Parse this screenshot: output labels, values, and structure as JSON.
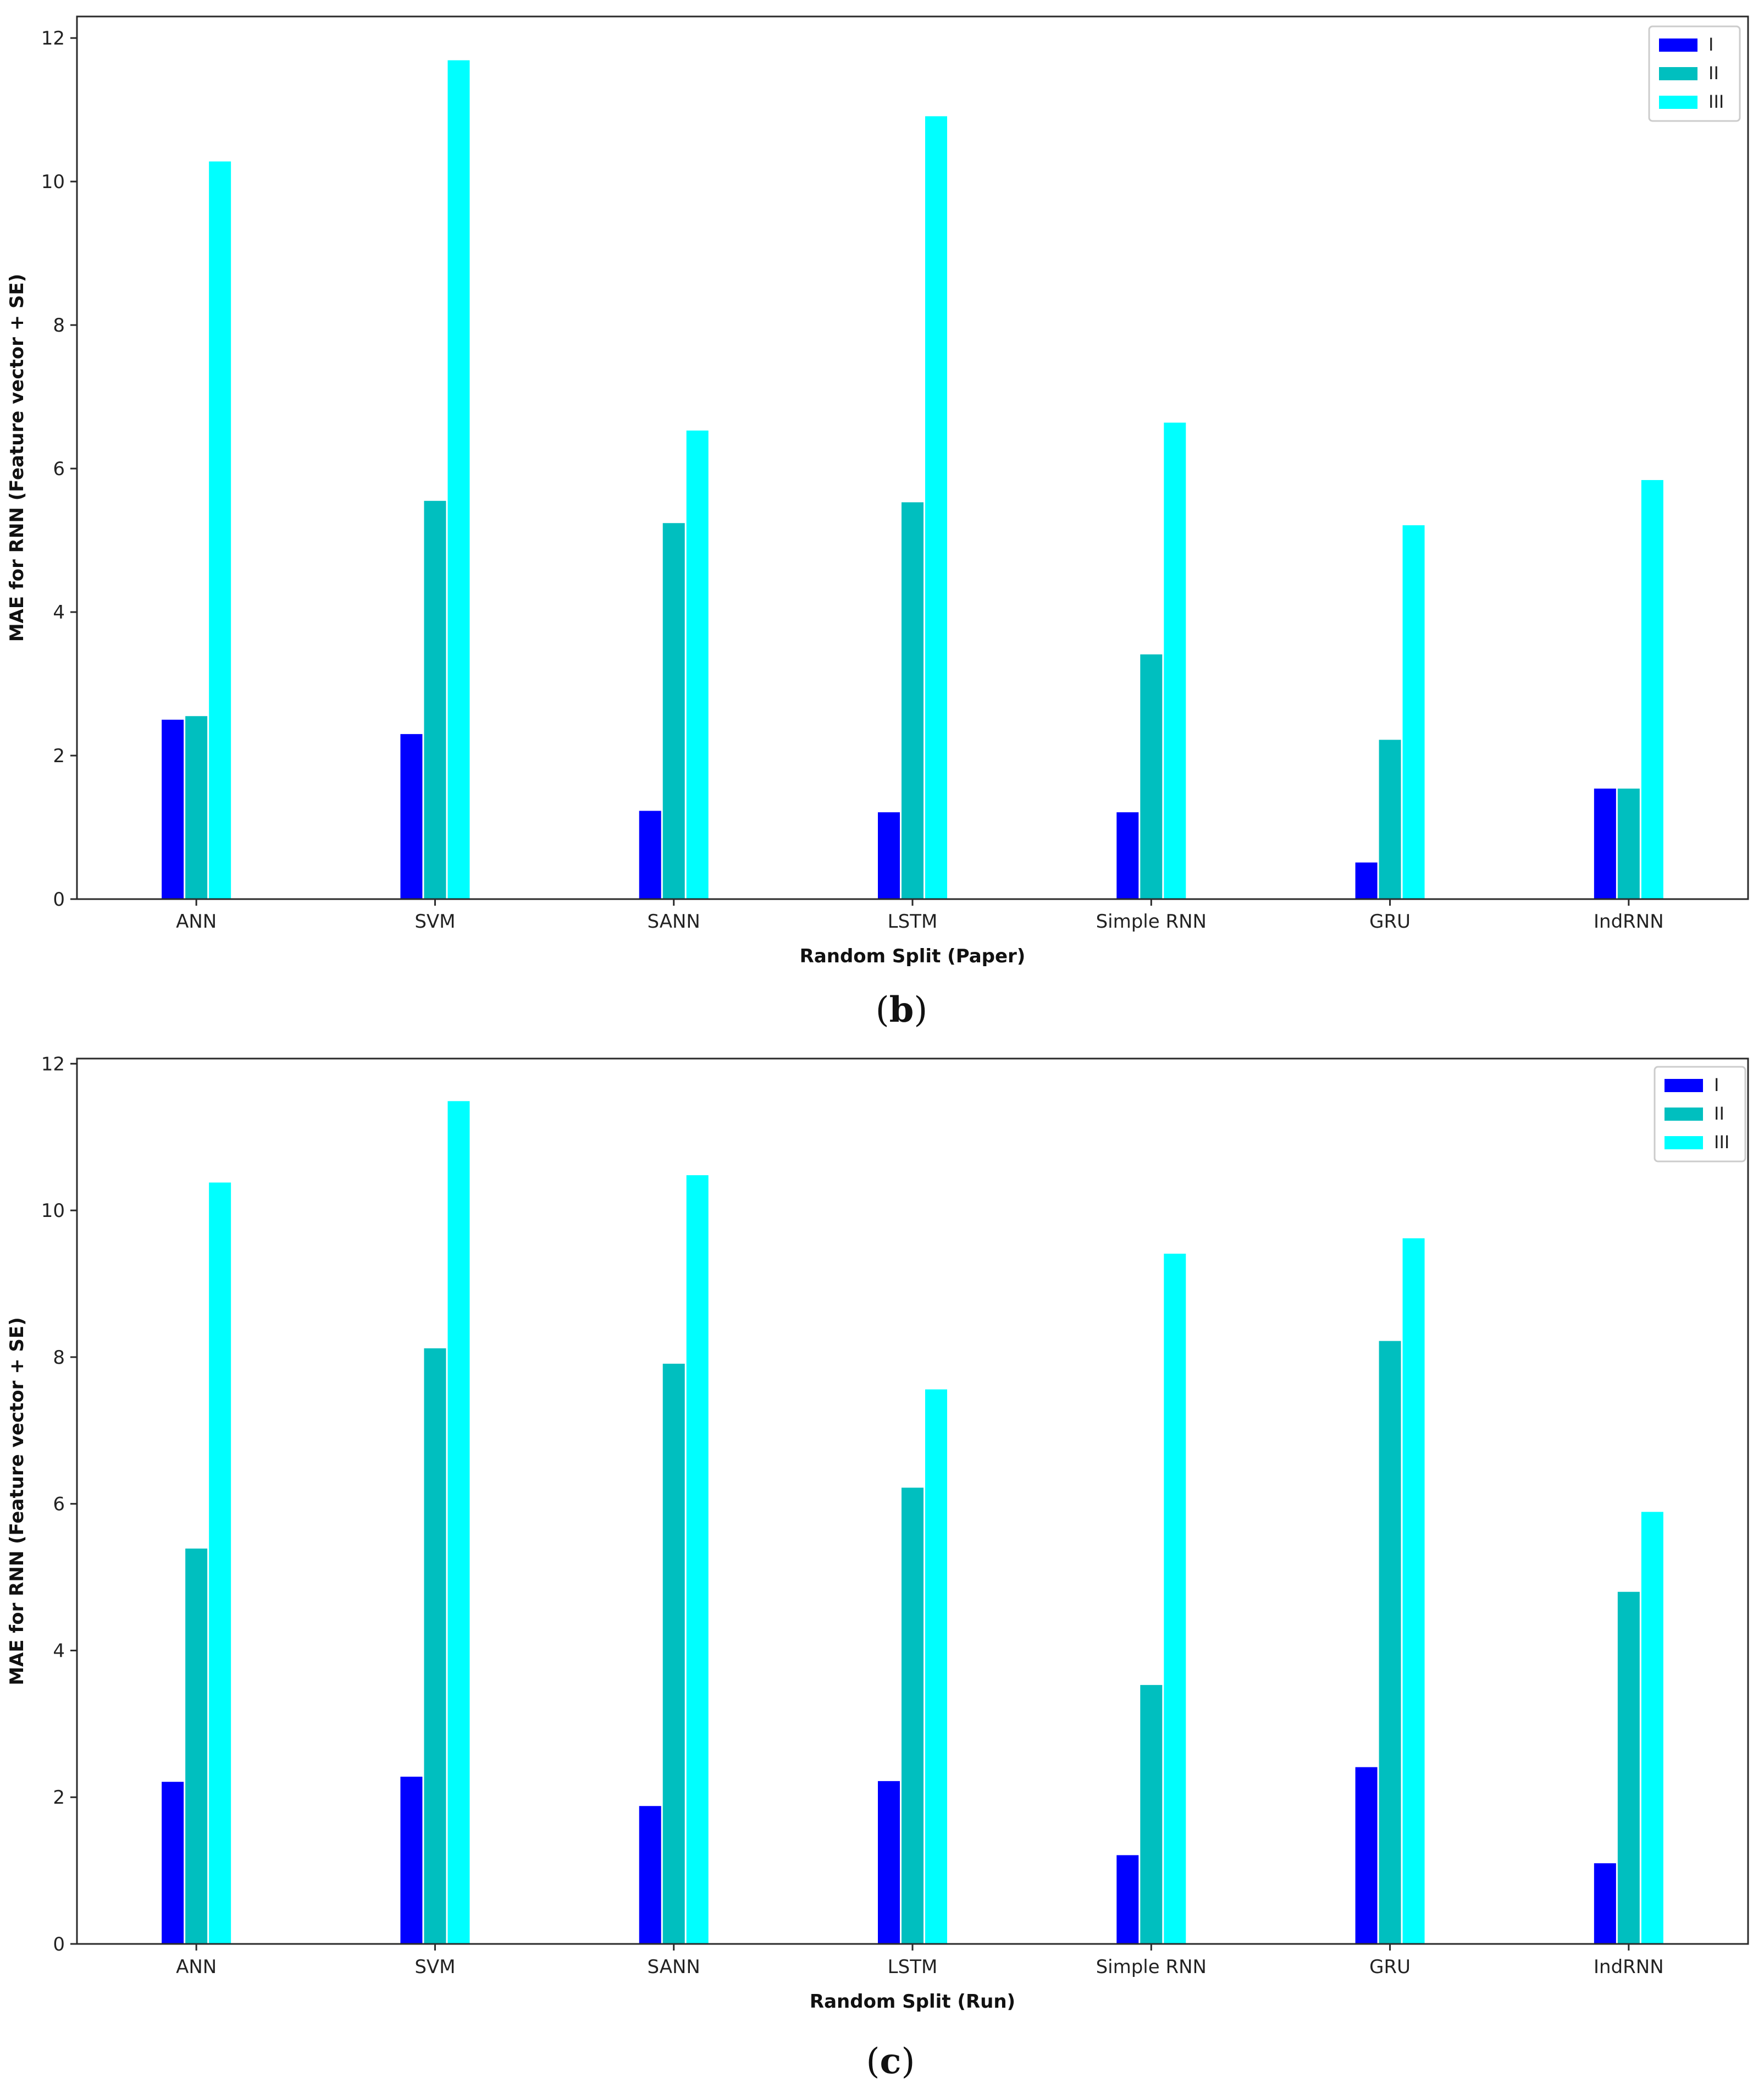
{
  "chart_data": [
    {
      "type": "bar",
      "panel": "b",
      "categories": [
        "ANN",
        "SVM",
        "SANN",
        "LSTM",
        "Simple RNN",
        "GRU",
        "IndRNN"
      ],
      "series": [
        {
          "name": "I",
          "color": "#0000ff",
          "values": [
            2.5,
            2.3,
            1.23,
            1.21,
            1.21,
            0.51,
            1.54
          ]
        },
        {
          "name": "II",
          "color": "#00bfbf",
          "values": [
            2.55,
            5.55,
            5.24,
            5.53,
            3.41,
            2.22,
            1.54
          ]
        },
        {
          "name": "III",
          "color": "#00ffff",
          "values": [
            10.28,
            11.69,
            6.53,
            10.91,
            6.64,
            5.21,
            5.84
          ]
        }
      ],
      "xlabel": "Random Split (Paper)",
      "ylabel": "MAE for RNN (Feature vector + SE)",
      "ylim": [
        0,
        12.3
      ],
      "yticks": [
        0,
        2,
        4,
        6,
        8,
        10,
        12
      ],
      "legend": "top-right",
      "caption_open": "(",
      "caption_letter": "b",
      "caption_close": ")"
    },
    {
      "type": "bar",
      "panel": "c",
      "categories": [
        "ANN",
        "SVM",
        "SANN",
        "LSTM",
        "Simple RNN",
        "GRU",
        "IndRNN"
      ],
      "series": [
        {
          "name": "I",
          "color": "#0000ff",
          "values": [
            2.21,
            2.28,
            1.88,
            2.22,
            1.21,
            2.41,
            1.1
          ]
        },
        {
          "name": "II",
          "color": "#00bfbf",
          "values": [
            5.39,
            8.12,
            7.91,
            6.22,
            3.53,
            8.22,
            4.8
          ]
        },
        {
          "name": "III",
          "color": "#00ffff",
          "values": [
            10.38,
            11.49,
            10.48,
            7.56,
            9.41,
            9.62,
            5.89
          ]
        }
      ],
      "xlabel": "Random Split (Run)",
      "ylabel": "MAE for RNN (Feature vector + SE)",
      "ylim": [
        0,
        12.07
      ],
      "yticks": [
        0,
        2,
        4,
        6,
        8,
        10,
        12
      ],
      "legend": "top-right",
      "caption_open": "(",
      "caption_letter": "c",
      "caption_close": ")"
    }
  ]
}
